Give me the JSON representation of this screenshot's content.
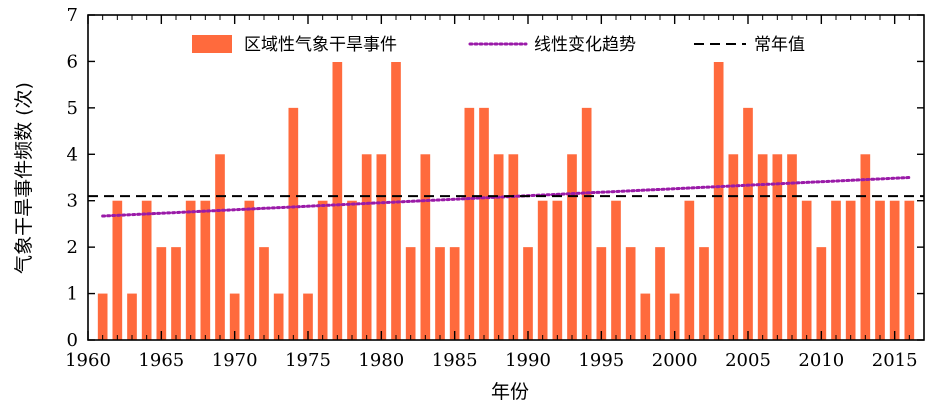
{
  "chart_data": {
    "type": "bar",
    "xlabel": "年份",
    "ylabel": "气象干旱事件频数 (次)",
    "xlim": [
      1960,
      2017
    ],
    "ylim": [
      0,
      7
    ],
    "x_ticks": [
      1960,
      1965,
      1970,
      1975,
      1980,
      1985,
      1990,
      1995,
      2000,
      2005,
      2010,
      2015
    ],
    "y_ticks": [
      0,
      1,
      2,
      3,
      4,
      5,
      6,
      7
    ],
    "grid": false,
    "legend_position": "top",
    "x": [
      1961,
      1962,
      1963,
      1964,
      1965,
      1966,
      1967,
      1968,
      1969,
      1970,
      1971,
      1972,
      1973,
      1974,
      1975,
      1976,
      1977,
      1978,
      1979,
      1980,
      1981,
      1982,
      1983,
      1984,
      1985,
      1986,
      1987,
      1988,
      1989,
      1990,
      1991,
      1992,
      1993,
      1994,
      1995,
      1996,
      1997,
      1998,
      1999,
      2000,
      2001,
      2002,
      2003,
      2004,
      2005,
      2006,
      2007,
      2008,
      2009,
      2010,
      2011,
      2012,
      2013,
      2014,
      2015,
      2016
    ],
    "series": [
      {
        "name": "区域性气象干旱事件",
        "type": "bar",
        "color": "#ff6a3d",
        "values": [
          1,
          3,
          1,
          3,
          2,
          2,
          3,
          3,
          4,
          1,
          3,
          2,
          1,
          5,
          1,
          3,
          6,
          3,
          4,
          4,
          6,
          2,
          4,
          2,
          2,
          5,
          5,
          4,
          4,
          2,
          3,
          3,
          4,
          5,
          2,
          3,
          2,
          1,
          2,
          1,
          3,
          2,
          6,
          4,
          5,
          4,
          4,
          4,
          3,
          2,
          3,
          3,
          4,
          3,
          3,
          3
        ]
      },
      {
        "name": "线性变化趋势",
        "type": "line",
        "style": "dotted",
        "color": "#9a1aa8",
        "x": [
          1961,
          2016
        ],
        "values": [
          2.67,
          3.5
        ]
      },
      {
        "name": "常年值",
        "type": "line",
        "style": "dashed",
        "color": "#000000",
        "x": [
          1960,
          2017
        ],
        "values": [
          3.1,
          3.1
        ]
      }
    ]
  }
}
